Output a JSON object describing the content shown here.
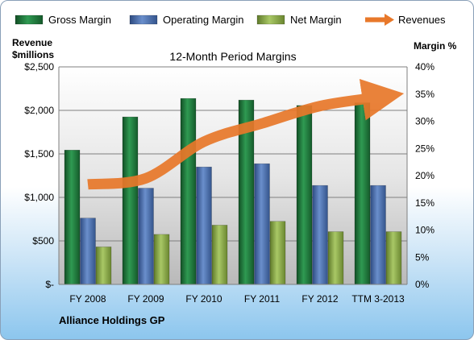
{
  "chart_data": {
    "type": "bar",
    "title": "12-Month Period Margins",
    "subtitle": "Alliance Holdings GP",
    "categories": [
      "FY 2008",
      "FY 2009",
      "FY 2010",
      "FY 2011",
      "FY 2012",
      "TTM 3-2013"
    ],
    "left_axis": {
      "label_line1": "Revenue",
      "label_line2": "$millions",
      "ylim": [
        0,
        2500
      ],
      "ticks": [
        0,
        500,
        1000,
        1500,
        2000,
        2500
      ],
      "tick_labels": [
        "$-",
        "$500",
        "$1,000",
        "$1,500",
        "$2,000",
        "$2,500"
      ]
    },
    "right_axis": {
      "label": "Margin %",
      "ylim": [
        0,
        40
      ],
      "ticks": [
        0,
        5,
        10,
        15,
        20,
        25,
        30,
        35,
        40
      ],
      "tick_labels": [
        "0%",
        "5%",
        "10%",
        "15%",
        "20%",
        "25%",
        "30%",
        "35%",
        "40%"
      ]
    },
    "series": [
      {
        "name": "Gross Margin",
        "type": "bar",
        "axis": "right",
        "color": "#1f7a3e",
        "values": [
          24.7,
          30.8,
          34.2,
          33.9,
          32.9,
          33.4
        ]
      },
      {
        "name": "Operating Margin",
        "type": "bar",
        "axis": "right",
        "color": "#4a6fb0",
        "values": [
          12.2,
          17.7,
          21.6,
          22.2,
          18.2,
          18.2
        ]
      },
      {
        "name": "Net Margin",
        "type": "bar",
        "axis": "right",
        "color": "#8fb04a",
        "values": [
          6.9,
          9.2,
          10.9,
          11.6,
          9.7,
          9.7
        ]
      },
      {
        "name": "Revenues",
        "type": "line",
        "axis": "left",
        "color": "#e8782a",
        "values": [
          1150,
          1220,
          1640,
          1850,
          2050,
          2150
        ]
      }
    ],
    "grid": true,
    "legend": "top"
  }
}
